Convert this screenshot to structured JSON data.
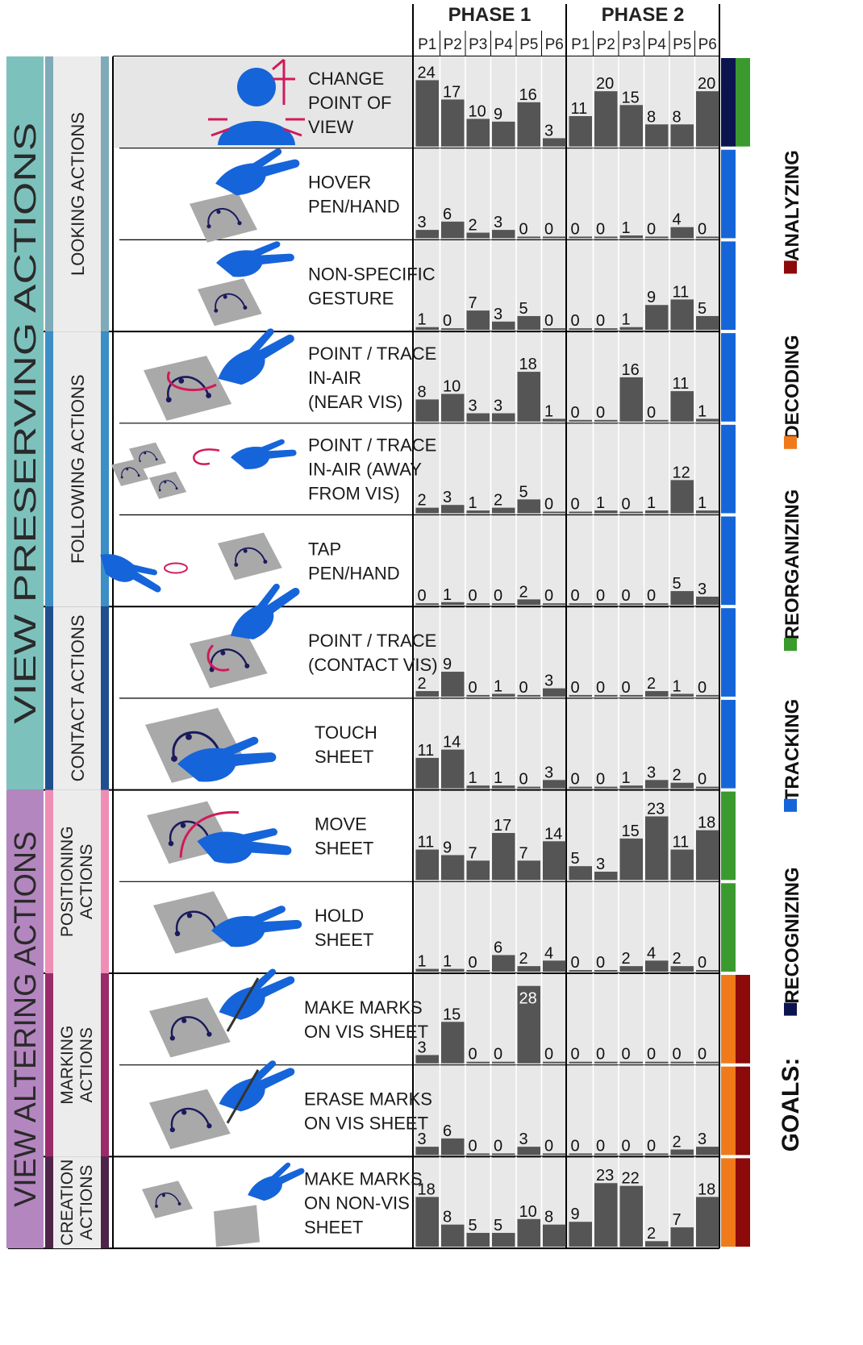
{
  "header": {
    "phases": [
      "PHASE 1",
      "PHASE 2"
    ],
    "participants": [
      "P1",
      "P2",
      "P3",
      "P4",
      "P5",
      "P6"
    ]
  },
  "groups": [
    {
      "label": "VIEW PRESERVING ACTIONS",
      "color": "#7dc1bd"
    },
    {
      "label": "VIEW ALTERING ACTIONS",
      "color": "#b486bf"
    }
  ],
  "categories": [
    {
      "label": "LOOKING ACTIONS",
      "color": "#7faab8"
    },
    {
      "label": "FOLLOWING ACTIONS",
      "color": "#3b8fc6"
    },
    {
      "label": "CONTACT ACTIONS",
      "color": "#1f4f8f"
    },
    {
      "label": "POSITIONING ACTIONS",
      "color": "#ef8db5"
    },
    {
      "label": "MARKING ACTIONS",
      "color": "#9b2a6a"
    },
    {
      "label": "CREATION ACTIONS",
      "color": "#4e2448"
    }
  ],
  "actions": [
    {
      "label": "CHANGE POINT OF VIEW",
      "lines": [
        "CHANGE",
        "POINT OF",
        "VIEW"
      ],
      "icon": "head-viewpoint-icon"
    },
    {
      "label": "HOVER PEN/HAND",
      "lines": [
        "HOVER",
        "PEN/HAND"
      ],
      "icon": "hover-hand-icon"
    },
    {
      "label": "NON-SPECIFIC GESTURE",
      "lines": [
        "NON-SPECIFIC",
        "GESTURE"
      ],
      "icon": "gesture-hand-icon"
    },
    {
      "label": "POINT / TRACE IN-AIR (NEAR VIS)",
      "lines": [
        "POINT / TRACE",
        "IN-AIR",
        "(NEAR VIS)"
      ],
      "icon": "trace-near-icon"
    },
    {
      "label": "POINT / TRACE IN-AIR (AWAY FROM VIS)",
      "lines": [
        "POINT / TRACE",
        "IN-AIR (AWAY",
        "FROM VIS)"
      ],
      "icon": "trace-away-icon"
    },
    {
      "label": "TAP PEN/HAND",
      "lines": [
        "TAP",
        "PEN/HAND"
      ],
      "icon": "tap-pen-icon"
    },
    {
      "label": "POINT / TRACE (CONTACT VIS)",
      "lines": [
        "POINT / TRACE",
        "(CONTACT VIS)"
      ],
      "icon": "trace-contact-icon"
    },
    {
      "label": "TOUCH SHEET",
      "lines": [
        "TOUCH",
        "SHEET"
      ],
      "icon": "touch-sheet-icon"
    },
    {
      "label": "MOVE SHEET",
      "lines": [
        "MOVE",
        "SHEET"
      ],
      "icon": "move-sheet-icon"
    },
    {
      "label": "HOLD SHEET",
      "lines": [
        "HOLD",
        "SHEET"
      ],
      "icon": "hold-sheet-icon"
    },
    {
      "label": "MAKE MARKS ON VIS SHEET",
      "lines": [
        "MAKE MARKS",
        "ON VIS SHEET"
      ],
      "icon": "make-marks-icon"
    },
    {
      "label": "ERASE MARKS ON VIS SHEET",
      "lines": [
        "ERASE MARKS",
        "ON VIS SHEET"
      ],
      "icon": "erase-marks-icon"
    },
    {
      "label": "MAKE MARKS ON NON-VIS SHEET",
      "lines": [
        "MAKE MARKS",
        "ON NON-VIS",
        "SHEET"
      ],
      "icon": "non-vis-sheet-icon"
    }
  ],
  "goals": {
    "title": "GOALS:",
    "items": [
      {
        "label": "RECOGNIZING",
        "color": "#0c1450"
      },
      {
        "label": "TRACKING",
        "color": "#1565d8"
      },
      {
        "label": "REORGANIZING",
        "color": "#3a9a2e"
      },
      {
        "label": "DECODING",
        "color": "#f07a1a"
      },
      {
        "label": "ANALYZING",
        "color": "#8c0a0a"
      }
    ]
  },
  "row_goals": [
    [
      "RECOGNIZING",
      "REORGANIZING"
    ],
    [
      "TRACKING"
    ],
    [
      "TRACKING"
    ],
    [
      "TRACKING"
    ],
    [
      "TRACKING"
    ],
    [
      "TRACKING"
    ],
    [
      "TRACKING"
    ],
    [
      "TRACKING"
    ],
    [
      "REORGANIZING"
    ],
    [
      "REORGANIZING"
    ],
    [
      "DECODING",
      "ANALYZING"
    ],
    [
      "DECODING",
      "ANALYZING"
    ],
    [
      "DECODING",
      "ANALYZING"
    ]
  ],
  "chart_data": {
    "type": "bar",
    "ylim": [
      0,
      28
    ],
    "bar_color": "#555555",
    "columns": [
      "P1",
      "P2",
      "P3",
      "P4",
      "P5",
      "P6"
    ],
    "series": [
      {
        "name": "PHASE 1",
        "rows": [
          [
            24,
            17,
            10,
            9,
            16,
            3
          ],
          [
            3,
            6,
            2,
            3,
            0,
            0
          ],
          [
            1,
            0,
            7,
            3,
            5,
            0
          ],
          [
            8,
            10,
            3,
            3,
            18,
            1
          ],
          [
            2,
            3,
            1,
            2,
            5,
            0
          ],
          [
            0,
            1,
            0,
            0,
            2,
            0
          ],
          [
            2,
            9,
            0,
            1,
            0,
            3
          ],
          [
            11,
            14,
            1,
            1,
            0,
            3
          ],
          [
            11,
            9,
            7,
            17,
            7,
            14
          ],
          [
            1,
            1,
            0,
            6,
            2,
            4
          ],
          [
            3,
            15,
            0,
            0,
            28,
            0
          ],
          [
            3,
            6,
            0,
            0,
            3,
            0
          ],
          [
            18,
            8,
            5,
            5,
            10,
            8
          ]
        ]
      },
      {
        "name": "PHASE 2",
        "rows": [
          [
            11,
            20,
            15,
            8,
            8,
            20
          ],
          [
            0,
            0,
            1,
            0,
            4,
            0
          ],
          [
            0,
            0,
            1,
            9,
            11,
            5
          ],
          [
            0,
            0,
            16,
            0,
            11,
            1
          ],
          [
            0,
            1,
            0,
            1,
            12,
            1
          ],
          [
            0,
            0,
            0,
            0,
            5,
            3
          ],
          [
            0,
            0,
            0,
            2,
            1,
            0
          ],
          [
            0,
            0,
            1,
            3,
            2,
            0
          ],
          [
            5,
            3,
            15,
            23,
            11,
            18
          ],
          [
            0,
            0,
            2,
            4,
            2,
            0
          ],
          [
            0,
            0,
            0,
            0,
            0,
            0
          ],
          [
            0,
            0,
            0,
            0,
            2,
            3
          ],
          [
            9,
            23,
            22,
            2,
            7,
            18
          ]
        ]
      }
    ]
  }
}
